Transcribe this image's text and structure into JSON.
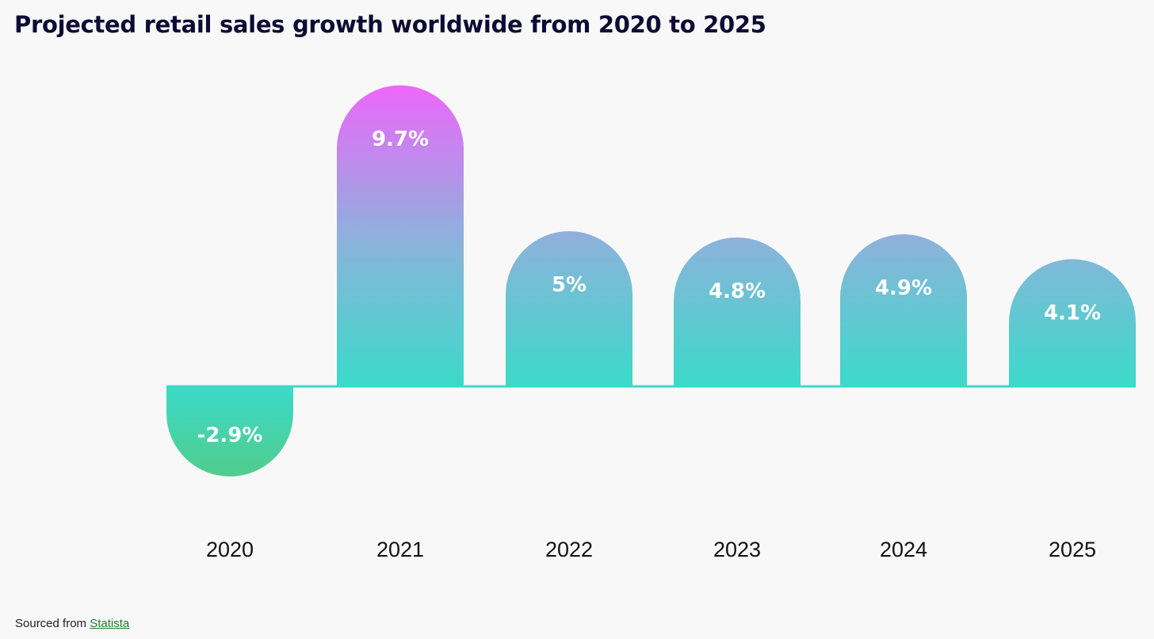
{
  "title": "Projected retail sales growth worldwide from 2020 to 2025",
  "source": {
    "prefix": "Sourced from",
    "link_text": "Statista"
  },
  "colors": {
    "background": "#f8f8f8",
    "title": "#0f0a33",
    "gradient_top": "#ee66fb",
    "gradient_mid": "#86b6da",
    "gradient_bottom": "#3bdac9",
    "negative_bottom": "#58c878",
    "baseline": "#3bdac9",
    "link": "#1a7f37"
  },
  "chart_data": {
    "type": "bar",
    "title": "Projected retail sales growth worldwide from 2020 to 2025",
    "xlabel": "",
    "ylabel": "",
    "categories": [
      "2020",
      "2021",
      "2022",
      "2023",
      "2024",
      "2025"
    ],
    "values": [
      -2.9,
      9.7,
      5,
      4.8,
      4.9,
      4.1
    ],
    "data_labels": [
      "-2.9%",
      "9.7%",
      "5%",
      "4.8%",
      "4.9%",
      "4.1%"
    ],
    "unit": "%",
    "grid": false,
    "legend": "none",
    "bar_shape": "rounded-end"
  }
}
